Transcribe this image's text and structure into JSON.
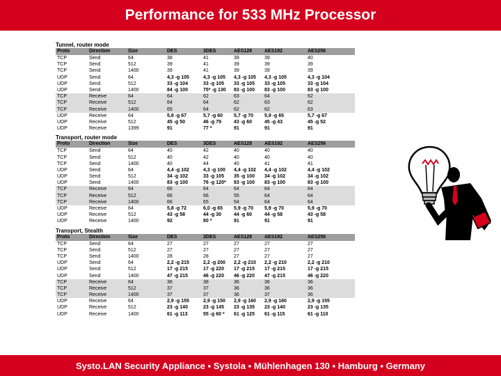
{
  "header": {
    "title": "Performance for 533 MHz Processor"
  },
  "footer": {
    "text": "Systo.LAN Security Appliance ▪ Systola ▪ Mühlenhagen 130 ▪ Hamburg ▪ Germany"
  },
  "columns": [
    "Proto",
    "Direction",
    "Size",
    "DES",
    "3DES",
    "AES128",
    "AES192",
    "AES256"
  ],
  "sections": [
    {
      "title": "Tunnel, router mode",
      "rows": [
        [
          "TCP",
          "Send",
          "64",
          "38",
          "41",
          "39",
          "39",
          "40"
        ],
        [
          "TCP",
          "Send",
          "512",
          "39",
          "41",
          "39",
          "39",
          "39"
        ],
        [
          "TCP",
          "Send",
          "1400",
          "39",
          "41",
          "39",
          "39",
          "39"
        ],
        [
          "UDP",
          "Send",
          "64",
          "4,3 -g 105",
          "4,3 -g 105",
          "4,3 -g 105",
          "4,3 -g 105",
          "4,3 -g 104"
        ],
        [
          "UDP",
          "Send",
          "512",
          "33 -g 104",
          "33 -g 105",
          "33 -g 105",
          "33 -g 105",
          "33 -g 104"
        ],
        [
          "UDP",
          "Send",
          "1400",
          "84 -g 100",
          "75* -g 130",
          "83 -g 100",
          "83 -g 100",
          "83 -g 100"
        ],
        [
          "TCP",
          "Receive",
          "64",
          "64",
          "62",
          "63",
          "64",
          "62"
        ],
        [
          "TCP",
          "Receive",
          "512",
          "64",
          "64",
          "62",
          "63",
          "62"
        ],
        [
          "TCP",
          "Receive",
          "1400",
          "65",
          "64",
          "62",
          "62",
          "63"
        ],
        [
          "UDP",
          "Receive",
          "64",
          "5,8 -g 67",
          "5,7 -g 60",
          "5,7 -g 70",
          "5,9 -g 65",
          "5,7 -g 67"
        ],
        [
          "UDP",
          "Receive",
          "512",
          "45 -g 50",
          "46 -g 79",
          "43 -g 60",
          "45 -g 43",
          "45 -g 52"
        ],
        [
          "UDP",
          "Receive",
          "1399",
          "91",
          "77 *",
          "91",
          "91",
          "91"
        ]
      ]
    },
    {
      "title": "Transport, router mode",
      "rows": [
        [
          "TCP",
          "Send",
          "64",
          "40",
          "42",
          "40",
          "40",
          "40"
        ],
        [
          "TCP",
          "Send",
          "512",
          "40",
          "42",
          "40",
          "40",
          "40"
        ],
        [
          "TCP",
          "Send",
          "1400",
          "40",
          "44",
          "40",
          "41",
          "41"
        ],
        [
          "UDP",
          "Send",
          "64",
          "4,4 -g 102",
          "4,3 -g 100",
          "4,4 -g 102",
          "4,4 -g 102",
          "4,4 -g 102"
        ],
        [
          "UDP",
          "Send",
          "512",
          "34 -g 102",
          "33 -g 105",
          "35 -g 100",
          "34 -g 102",
          "34 -g 102"
        ],
        [
          "UDP",
          "Send",
          "1400",
          "83 -g 100",
          "76 -g 120*",
          "83 -g 100",
          "83 -g 100",
          "83 -g 100"
        ],
        [
          "TCP",
          "Receive",
          "64",
          "66",
          "64",
          "64",
          "64",
          "64"
        ],
        [
          "TCP",
          "Receive",
          "512",
          "66",
          "66",
          "55",
          "64",
          "64"
        ],
        [
          "TCP",
          "Receive",
          "1400",
          "66",
          "65",
          "54",
          "64",
          "64"
        ],
        [
          "UDP",
          "Receive",
          "64",
          "5,8 -g 72",
          "6,0 -g 65",
          "5,9 -g 70",
          "5,9 -g 70",
          "5,9 -g 70"
        ],
        [
          "UDP",
          "Receive",
          "512",
          "43 -g 58",
          "44 -g 30",
          "44 -g 60",
          "44 -g 58",
          "43 -g 58"
        ],
        [
          "UDP",
          "Receive",
          "1400",
          "92",
          "80 *",
          "91",
          "91",
          "91"
        ]
      ]
    },
    {
      "title": "Transport, Stealth",
      "rows": [
        [
          "TCP",
          "Send",
          "64",
          "27",
          "27",
          "27",
          "27",
          "27"
        ],
        [
          "TCP",
          "Send",
          "512",
          "27",
          "27",
          "27",
          "27",
          "27"
        ],
        [
          "TCP",
          "Send",
          "1400",
          "28",
          "28",
          "27",
          "27",
          "27"
        ],
        [
          "UDP",
          "Send",
          "64",
          "2,2 -g 215",
          "2,2 -g 200",
          "2,2 -g 210",
          "2,2 -g 210",
          "2,2 -g 210"
        ],
        [
          "UDP",
          "Send",
          "512",
          "17 -g 215",
          "17 -g 220",
          "17 -g 215",
          "17 -g 215",
          "17 -g 215"
        ],
        [
          "UDP",
          "Send",
          "1400",
          "47 -g 215",
          "46 -g 220",
          "46 -g 220",
          "47 -g 215",
          "46 -g 220"
        ],
        [
          "TCP",
          "Receive",
          "64",
          "36",
          "38",
          "36",
          "36",
          "36"
        ],
        [
          "TCP",
          "Receive",
          "512",
          "37",
          "37",
          "36",
          "36",
          "36"
        ],
        [
          "TCP",
          "Receive",
          "1400",
          "37",
          "37",
          "36",
          "37",
          "36"
        ],
        [
          "UDP",
          "Receive",
          "64",
          "2,9 -g 155",
          "2,9 -g 150",
          "2,9 -g 160",
          "2,9 -g 160",
          "2,9 -g 155"
        ],
        [
          "UDP",
          "Receive",
          "512",
          "23 -g 140",
          "23 -g 145",
          "23 -g 135",
          "23 -g 140",
          "23 -g 135"
        ],
        [
          "UDP",
          "Receive",
          "1400",
          "61 -g 113",
          "55 -g 60 *",
          "61 -g 125",
          "61 -g 115",
          "61 -g 110"
        ]
      ]
    }
  ]
}
